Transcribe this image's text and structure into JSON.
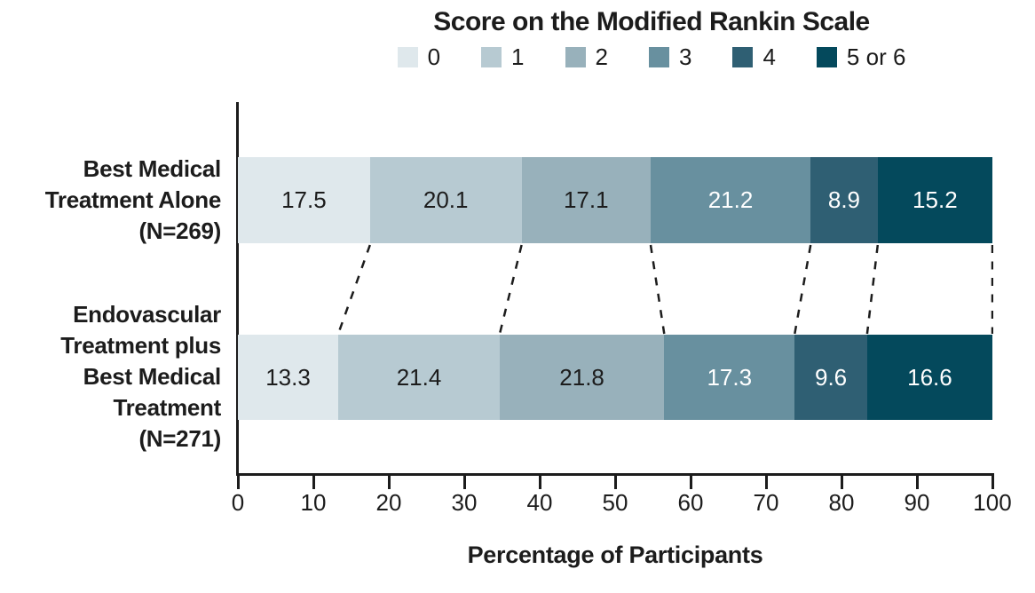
{
  "chart_data": {
    "type": "bar",
    "stacked": true,
    "orientation": "horizontal",
    "title": "Score on the Modified Rankin Scale",
    "xlabel": "Percentage of Participants",
    "xlim": [
      0,
      100
    ],
    "xticks": [
      0,
      10,
      20,
      30,
      40,
      50,
      60,
      70,
      80,
      90,
      100
    ],
    "grid": false,
    "legend_position": "top",
    "legend": [
      {
        "label": "0",
        "color": "#dfe8ec",
        "text_color": "#1c1c1c"
      },
      {
        "label": "1",
        "color": "#b7cad2",
        "text_color": "#1c1c1c"
      },
      {
        "label": "2",
        "color": "#98b1bb",
        "text_color": "#1c1c1c"
      },
      {
        "label": "3",
        "color": "#68909f",
        "text_color": "#ffffff"
      },
      {
        "label": "4",
        "color": "#2f5f73",
        "text_color": "#ffffff"
      },
      {
        "label": "5 or 6",
        "color": "#04495c",
        "text_color": "#ffffff"
      }
    ],
    "categories": [
      {
        "label_lines": [
          "Best Medical",
          "Treatment Alone",
          "(N=269)"
        ],
        "values": [
          17.5,
          20.1,
          17.1,
          21.2,
          8.9,
          15.2
        ]
      },
      {
        "label_lines": [
          "Endovascular",
          "Treatment plus",
          "Best Medical",
          "Treatment",
          "(N=271)"
        ],
        "values": [
          13.3,
          21.4,
          21.8,
          17.3,
          9.6,
          16.6
        ]
      }
    ],
    "connector_lines": "dashed",
    "axis_color": "#1c1c1c"
  }
}
